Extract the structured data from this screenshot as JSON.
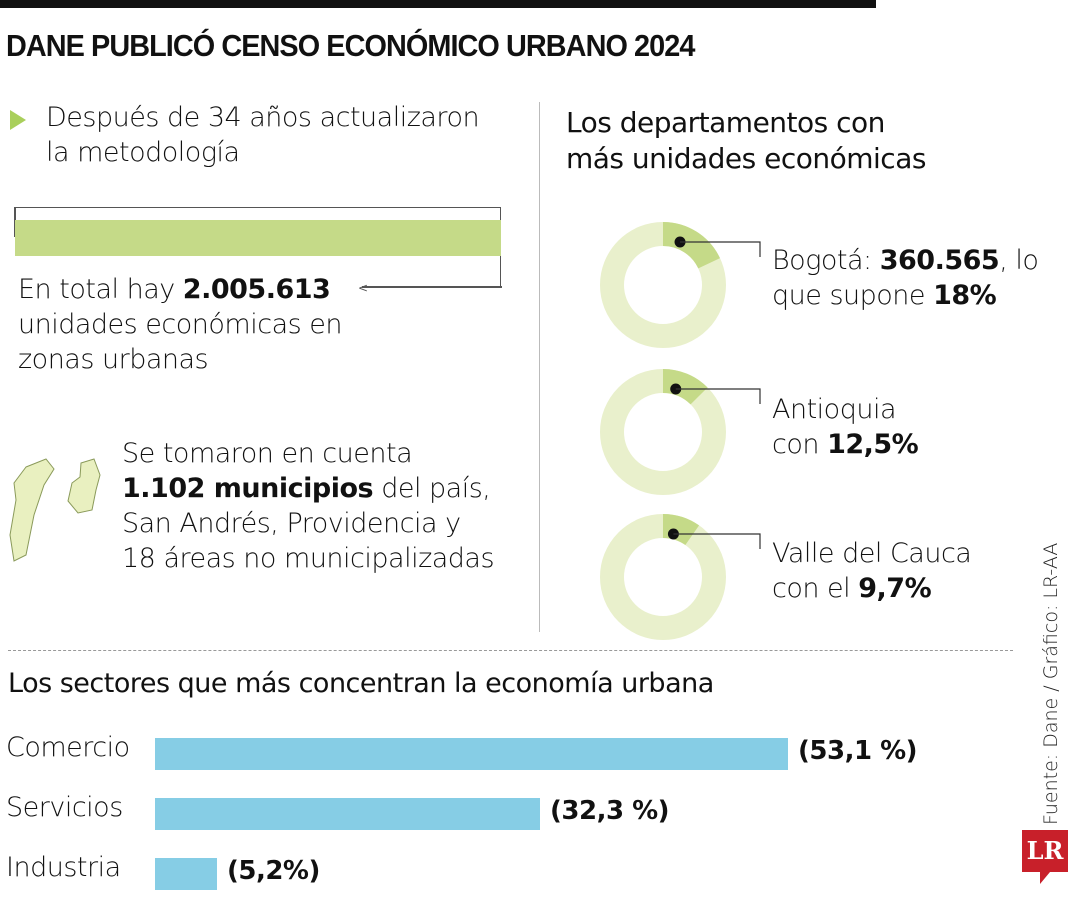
{
  "title": "DANE PUBLICÓ CENSO ECONÓMICO URBANO 2024",
  "intro": {
    "line1": "Después de 34 años actualizaron",
    "line2": "la metodología"
  },
  "total": {
    "prefix": "En total hay ",
    "value": "2.005.613",
    "line2": "unidades económicas en",
    "line3": "zonas urbanas"
  },
  "municipios": {
    "line1": "Se tomaron en cuenta",
    "bold": "1.102 municipios",
    "rest": " del país,",
    "line3": "San Andrés, Providencia y",
    "line4": "18 áreas no municipalizadas"
  },
  "departments": {
    "heading1": "Los departamentos con",
    "heading2": "más unidades económicas",
    "items": [
      {
        "name": "Bogotá",
        "pct": 18,
        "l1a": "Bogotá: ",
        "l1b": "360.565",
        "l1c": ", lo",
        "l2a": "que supone ",
        "l2b": "18%"
      },
      {
        "name": "Antioquia",
        "pct": 12.5,
        "l1a": "Antioquia",
        "l2a": "con ",
        "l2b": "12,5%"
      },
      {
        "name": "Valle del Cauca",
        "pct": 9.7,
        "l1a": "Valle del Cauca",
        "l2a": "con el ",
        "l2b": "9,7%"
      }
    ]
  },
  "chart_data": {
    "type": "bar",
    "title": "Los sectores que más concentran la economía urbana",
    "categories": [
      "Comercio",
      "Servicios",
      "Industria"
    ],
    "values": [
      53.1,
      32.3,
      5.2
    ],
    "labels": [
      "(53,1 %)",
      "(32,3 %)",
      "(5,2%)"
    ],
    "orientation": "horizontal",
    "color": "#86cde5"
  },
  "colors": {
    "donut_track": "#e9f0cc",
    "donut_fill": "#c5da88",
    "bar": "#86cde5",
    "accent": "#a9cf5b",
    "logo": "#c8202a"
  },
  "source": "Fuente: Dane / Gráfico: LR-AA",
  "logo": "LR"
}
